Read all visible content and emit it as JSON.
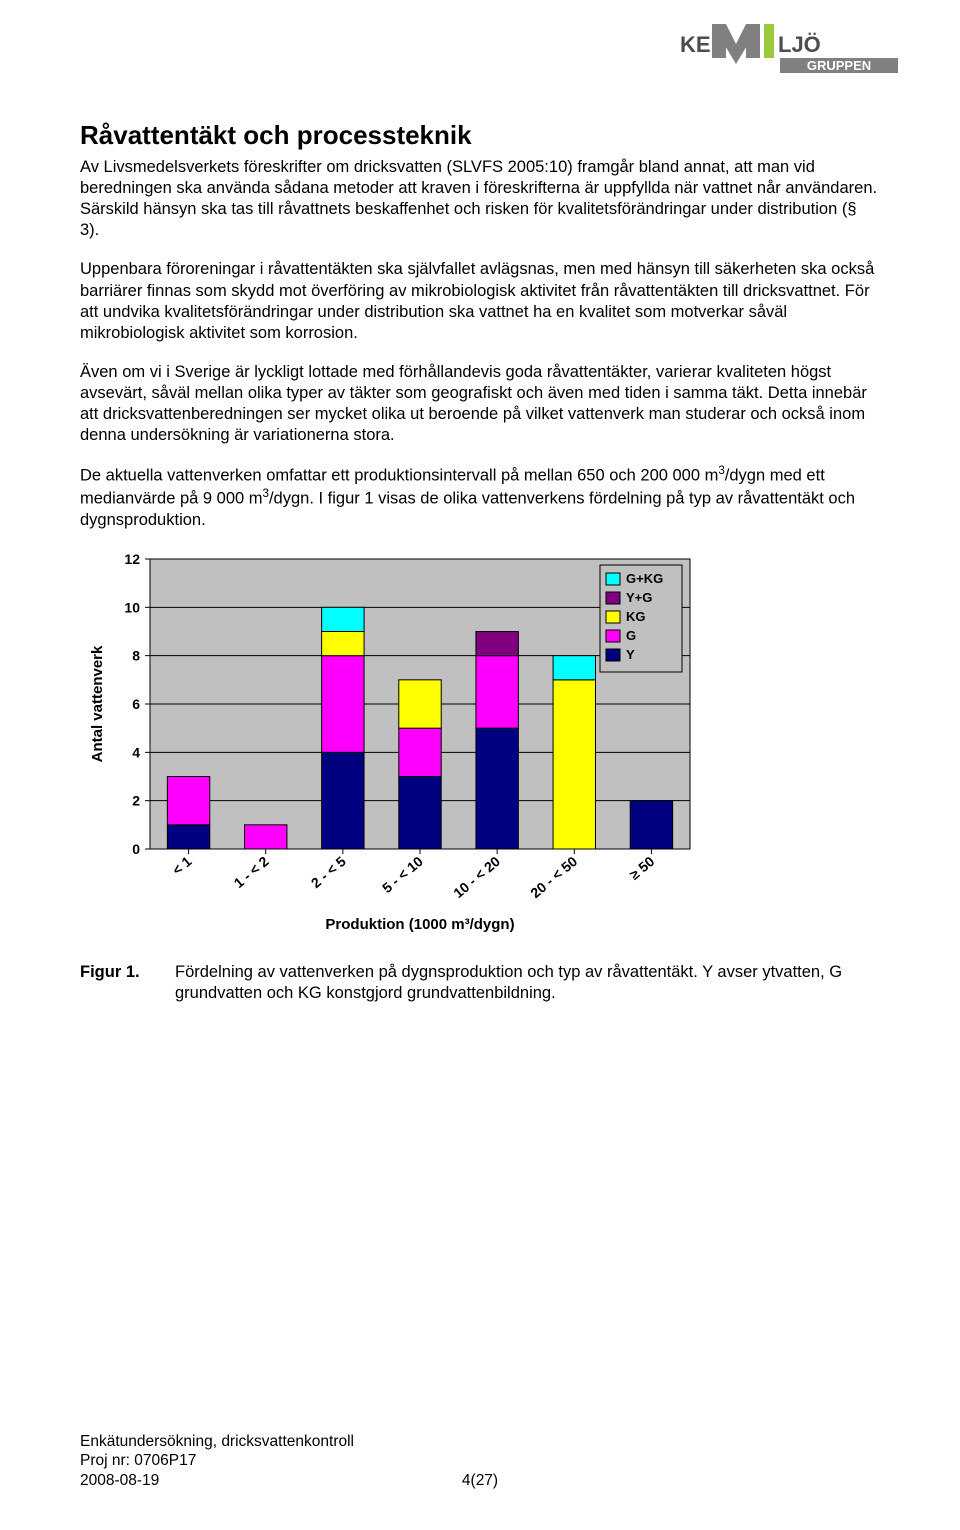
{
  "logo": {
    "left_text": "KE",
    "right_text": "LJÖ",
    "mid_color": "#808080",
    "accent_i_color": "#9aca3c",
    "sub_text": "GRUPPEN",
    "text_color": "#4d4d4d"
  },
  "heading": "Råvattentäkt och processteknik",
  "p1": "Av Livsmedelsverkets föreskrifter om dricksvatten (SLVFS 2005:10) framgår bland annat, att man vid beredningen ska använda sådana metoder att kraven i föreskrifterna är uppfyllda när vattnet når användaren. Särskild hänsyn ska tas till råvattnets beskaffenhet och risken för kvalitetsförändringar under distribution (§ 3).",
  "p2": "Uppenbara föroreningar i råvattentäkten ska självfallet avlägsnas, men med hänsyn till säkerheten ska också barriärer finnas som skydd mot överföring av mikrobiologisk aktivitet från råvattentäkten till dricksvattnet. För att undvika kvalitetsförändringar under distribution ska vattnet ha en kvalitet som motverkar såväl mikrobiologisk aktivitet som korrosion.",
  "p3": "Även om vi i Sverige är lyckligt lottade med förhållandevis goda råvattentäkter, varierar kvaliteten högst avsevärt, såväl mellan olika typer av täkter som geografiskt och även med tiden i samma täkt. Detta innebär att dricksvattenberedningen ser mycket olika ut beroende på vilket vattenverk man studerar och också inom denna undersökning är variationerna stora.",
  "p4a": "De aktuella vattenverken omfattar ett produktionsintervall på mellan 650 och 200 000 m",
  "p4b": "/dygn med ett medianvärde på 9 000 m",
  "p4c": "/dygn. I figur 1 visas de olika vattenverkens fördelning på typ av råvattentäkt och dygnsproduktion.",
  "chart": {
    "type": "stacked_bar",
    "plot_bg": "#c0c0c0",
    "outer_bg": "#ffffff",
    "grid_color": "#000000",
    "axis_color": "#000000",
    "ylabel": "Antal vattenverk",
    "xlabel": "Produktion (1000 m³/dygn)",
    "xlabel_html": "Produktion (1000 m<tspan baseline-shift=\"super\" font-size=\"10\">3</tspan>/dygn)",
    "ymin": 0,
    "ymax": 12,
    "ytick_step": 2,
    "yticks": [
      0,
      2,
      4,
      6,
      8,
      10,
      12
    ],
    "categories": [
      "< 1",
      "1 - < 2",
      "2 - < 5",
      "5 - < 10",
      "10 - < 20",
      "20 - < 50",
      "≥ 50"
    ],
    "series_order": [
      "Y",
      "G",
      "KG",
      "Y+G",
      "G+KG"
    ],
    "series_colors": {
      "Y": "#000080",
      "G": "#ff00ff",
      "KG": "#ffff00",
      "Y+G": "#800080",
      "G+KG": "#00ffff"
    },
    "data": {
      "Y": [
        1,
        0,
        4,
        3,
        5,
        0,
        2
      ],
      "G": [
        2,
        1,
        4,
        2,
        3,
        0,
        0
      ],
      "KG": [
        0,
        0,
        1,
        2,
        0,
        7,
        0
      ],
      "Y+G": [
        0,
        0,
        0,
        0,
        1,
        0,
        0
      ],
      "G+KG": [
        0,
        0,
        1,
        0,
        0,
        1,
        0
      ]
    },
    "legend": {
      "bg": "#c0c0c0",
      "border": "#000000",
      "items": [
        {
          "key": "G+KG",
          "label": "G+KG"
        },
        {
          "key": "Y+G",
          "label": "Y+G"
        },
        {
          "key": "KG",
          "label": "KG"
        },
        {
          "key": "G",
          "label": "G"
        },
        {
          "key": "Y",
          "label": "Y"
        }
      ]
    },
    "bar_width_ratio": 0.55,
    "label_fontsize": 14,
    "tick_fontsize": 14,
    "axis_title_fontsize": 15
  },
  "figure": {
    "label": "Figur 1.",
    "text": "Fördelning av vattenverken på dygnsproduktion och typ av råvattentäkt. Y avser ytvatten, G grundvatten och KG konstgjord grundvattenbildning."
  },
  "footer": {
    "line1": "Enkätundersökning, dricksvattenkontroll",
    "line2": "Proj nr: 0706P17",
    "line3": "2008-08-19",
    "page": "4(27)"
  }
}
